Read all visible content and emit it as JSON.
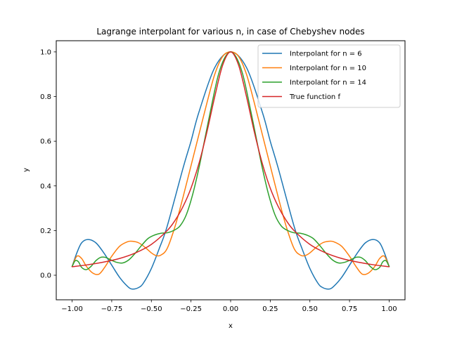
{
  "chart_data": {
    "type": "line",
    "title": "Lagrange interpolant for various n, in case of Chebyshev nodes",
    "xlabel": "x",
    "ylabel": "y",
    "xlim": [
      -1.1,
      1.1
    ],
    "ylim": [
      -0.11,
      1.05
    ],
    "xticks": [
      -1.0,
      -0.75,
      -0.5,
      -0.25,
      0.0,
      0.25,
      0.5,
      0.75,
      1.0
    ],
    "xtick_labels": [
      "−1.00",
      "−0.75",
      "−0.50",
      "−0.25",
      "0.00",
      "0.25",
      "0.50",
      "0.75",
      "1.00"
    ],
    "yticks": [
      0.0,
      0.2,
      0.4,
      0.6,
      0.8,
      1.0
    ],
    "ytick_labels": [
      "0.0",
      "0.2",
      "0.4",
      "0.6",
      "0.8",
      "1.0"
    ],
    "grid": false,
    "legend_position": "top-right",
    "series": [
      {
        "name": "Interpolant for n = 6",
        "color": "#1f77b4",
        "x": [
          -1.0,
          -0.97,
          -0.94,
          -0.9,
          -0.85,
          -0.8,
          -0.75,
          -0.7,
          -0.65,
          -0.62,
          -0.58,
          -0.55,
          -0.5,
          -0.45,
          -0.4,
          -0.3,
          -0.25,
          -0.2,
          -0.1,
          0.0,
          0.1,
          0.2,
          0.25,
          0.3,
          0.4,
          0.45,
          0.5,
          0.55,
          0.58,
          0.62,
          0.65,
          0.7,
          0.75,
          0.8,
          0.85,
          0.9,
          0.94,
          0.97,
          1.0
        ],
        "y": [
          0.039,
          0.1,
          0.145,
          0.16,
          0.145,
          0.1,
          0.045,
          -0.01,
          -0.05,
          -0.062,
          -0.055,
          -0.035,
          0.03,
          0.12,
          0.22,
          0.48,
          0.6,
          0.73,
          0.93,
          1.0,
          0.93,
          0.73,
          0.6,
          0.48,
          0.22,
          0.12,
          0.03,
          -0.035,
          -0.055,
          -0.062,
          -0.05,
          -0.01,
          0.045,
          0.1,
          0.145,
          0.16,
          0.145,
          0.1,
          0.039
        ]
      },
      {
        "name": "Interpolant for n = 10",
        "color": "#ff7f0e",
        "x": [
          -1.0,
          -0.97,
          -0.94,
          -0.91,
          -0.87,
          -0.83,
          -0.79,
          -0.75,
          -0.7,
          -0.65,
          -0.62,
          -0.58,
          -0.54,
          -0.5,
          -0.47,
          -0.44,
          -0.4,
          -0.35,
          -0.3,
          -0.25,
          -0.2,
          -0.15,
          -0.1,
          -0.05,
          0.0,
          0.05,
          0.1,
          0.15,
          0.2,
          0.25,
          0.3,
          0.35,
          0.4,
          0.44,
          0.47,
          0.5,
          0.54,
          0.58,
          0.62,
          0.65,
          0.7,
          0.75,
          0.79,
          0.83,
          0.87,
          0.91,
          0.94,
          0.97,
          1.0
        ],
        "y": [
          0.039,
          0.085,
          0.075,
          0.04,
          0.01,
          0.005,
          0.04,
          0.085,
          0.13,
          0.15,
          0.152,
          0.145,
          0.125,
          0.1,
          0.088,
          0.09,
          0.12,
          0.22,
          0.35,
          0.49,
          0.63,
          0.77,
          0.9,
          0.98,
          1.0,
          0.98,
          0.9,
          0.77,
          0.63,
          0.49,
          0.35,
          0.22,
          0.12,
          0.09,
          0.088,
          0.1,
          0.125,
          0.145,
          0.152,
          0.15,
          0.13,
          0.085,
          0.04,
          0.005,
          0.01,
          0.04,
          0.075,
          0.085,
          0.039
        ]
      },
      {
        "name": "Interpolant for n = 14",
        "color": "#2ca02c",
        "x": [
          -1.0,
          -0.98,
          -0.96,
          -0.94,
          -0.91,
          -0.88,
          -0.85,
          -0.82,
          -0.79,
          -0.76,
          -0.72,
          -0.68,
          -0.64,
          -0.6,
          -0.56,
          -0.52,
          -0.48,
          -0.44,
          -0.4,
          -0.36,
          -0.32,
          -0.28,
          -0.24,
          -0.2,
          -0.16,
          -0.12,
          -0.08,
          -0.04,
          0.0,
          0.04,
          0.08,
          0.12,
          0.16,
          0.2,
          0.24,
          0.28,
          0.32,
          0.36,
          0.4,
          0.44,
          0.48,
          0.52,
          0.56,
          0.6,
          0.64,
          0.68,
          0.72,
          0.76,
          0.79,
          0.82,
          0.85,
          0.88,
          0.91,
          0.94,
          0.96,
          0.98,
          1.0
        ],
        "y": [
          0.039,
          0.065,
          0.06,
          0.035,
          0.025,
          0.04,
          0.065,
          0.08,
          0.08,
          0.07,
          0.058,
          0.055,
          0.07,
          0.1,
          0.135,
          0.165,
          0.18,
          0.188,
          0.19,
          0.2,
          0.22,
          0.27,
          0.36,
          0.48,
          0.62,
          0.76,
          0.89,
          0.97,
          1.0,
          0.97,
          0.89,
          0.76,
          0.62,
          0.48,
          0.36,
          0.27,
          0.22,
          0.2,
          0.19,
          0.188,
          0.18,
          0.165,
          0.135,
          0.1,
          0.07,
          0.055,
          0.058,
          0.07,
          0.08,
          0.08,
          0.065,
          0.04,
          0.025,
          0.035,
          0.06,
          0.065,
          0.039
        ]
      },
      {
        "name": "True function f",
        "color": "#d62728",
        "x": [
          -1.0,
          -0.9,
          -0.8,
          -0.7,
          -0.6,
          -0.5,
          -0.4,
          -0.35,
          -0.3,
          -0.25,
          -0.2,
          -0.15,
          -0.1,
          -0.05,
          0.0,
          0.05,
          0.1,
          0.15,
          0.2,
          0.25,
          0.3,
          0.35,
          0.4,
          0.5,
          0.6,
          0.7,
          0.8,
          0.9,
          1.0
        ],
        "y": [
          0.038,
          0.047,
          0.059,
          0.075,
          0.1,
          0.138,
          0.2,
          0.246,
          0.308,
          0.39,
          0.5,
          0.64,
          0.8,
          0.941,
          1.0,
          0.941,
          0.8,
          0.64,
          0.5,
          0.39,
          0.308,
          0.246,
          0.2,
          0.138,
          0.1,
          0.075,
          0.059,
          0.047,
          0.038
        ]
      }
    ]
  }
}
